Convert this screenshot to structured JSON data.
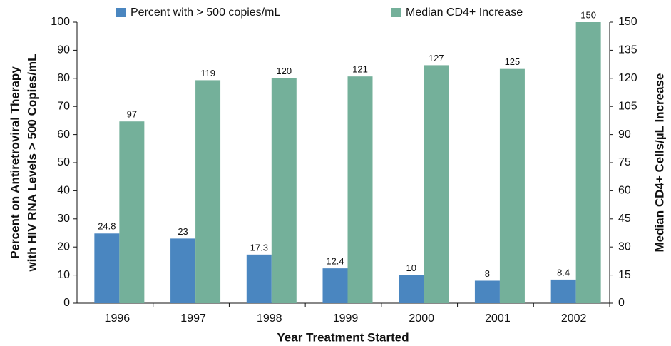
{
  "chart_data": {
    "type": "bar",
    "ylabel": [
      "Percent on Antiretroviral Therapy",
      "with HIV RNA Levels > 500 Copies/mL"
    ],
    "y2label": "Median CD4+ Cells/µL Increase",
    "xlabel": "Year Treatment Started",
    "categories": [
      "1996",
      "1997",
      "1998",
      "1999",
      "2000",
      "2001",
      "2002"
    ],
    "series": [
      {
        "name": "Percent with > 500 copies/mL",
        "color": "#4a86c0",
        "values": [
          24.8,
          23,
          17.3,
          12.4,
          10,
          8,
          8.4
        ]
      },
      {
        "name": "Median CD4+ Increase",
        "color": "#74b09a",
        "axis": "y2",
        "values": [
          97,
          119,
          120,
          121,
          127,
          125,
          150
        ]
      }
    ],
    "ylim": [
      0,
      100
    ],
    "yticks": [
      0,
      10,
      20,
      30,
      40,
      50,
      60,
      70,
      80,
      90,
      100
    ],
    "y2lim": [
      0,
      150
    ],
    "y2ticks": [
      0,
      15,
      30,
      45,
      60,
      75,
      90,
      105,
      120,
      135,
      150
    ],
    "grid": false
  }
}
